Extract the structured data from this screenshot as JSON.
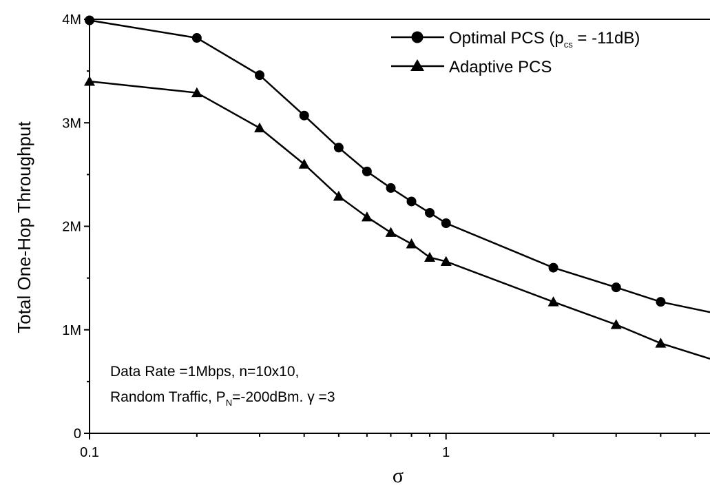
{
  "chart_data": {
    "type": "line",
    "xscale": "log",
    "xlim": [
      0.1,
      5.5
    ],
    "ylim": [
      0,
      4000000
    ],
    "xlabel": "σ",
    "ylabel": "Total One-Hop Throughput",
    "x_ticks": [
      {
        "value": 0.1,
        "label": "0.1"
      },
      {
        "value": 1,
        "label": "1"
      }
    ],
    "y_ticks": [
      {
        "value": 0,
        "label": "0"
      },
      {
        "value": 1000000,
        "label": "1M"
      },
      {
        "value": 2000000,
        "label": "2M"
      },
      {
        "value": 3000000,
        "label": "3M"
      },
      {
        "value": 4000000,
        "label": "4M"
      }
    ],
    "legend_position": "top-right",
    "series": [
      {
        "name": "Optimal PCS",
        "name_main": "Optimal PCS (p",
        "name_sub": "cs",
        "name_tail": " = -11dB)",
        "marker": "circle",
        "x": [
          0.1,
          0.2,
          0.3,
          0.4,
          0.5,
          0.6,
          0.7,
          0.8,
          0.9,
          1,
          2,
          3,
          4,
          5.5
        ],
        "y": [
          3990000,
          3820000,
          3460000,
          3070000,
          2760000,
          2530000,
          2370000,
          2240000,
          2130000,
          2030000,
          1600000,
          1410000,
          1270000,
          1170000
        ]
      },
      {
        "name": "Adaptive PCS",
        "name_main": "Adaptive PCS",
        "marker": "triangle",
        "x": [
          0.1,
          0.2,
          0.3,
          0.4,
          0.5,
          0.6,
          0.7,
          0.8,
          0.9,
          1,
          2,
          3,
          4,
          5.5
        ],
        "y": [
          3400000,
          3290000,
          2950000,
          2600000,
          2290000,
          2090000,
          1940000,
          1830000,
          1700000,
          1660000,
          1270000,
          1050000,
          870000,
          720000
        ]
      }
    ],
    "annotation": {
      "line1": "Data Rate =1Mbps, n=10x10,",
      "line2_a": "Random Traffic, P",
      "line2_sub": "N",
      "line2_b": "=-200dBm. γ =3"
    }
  }
}
